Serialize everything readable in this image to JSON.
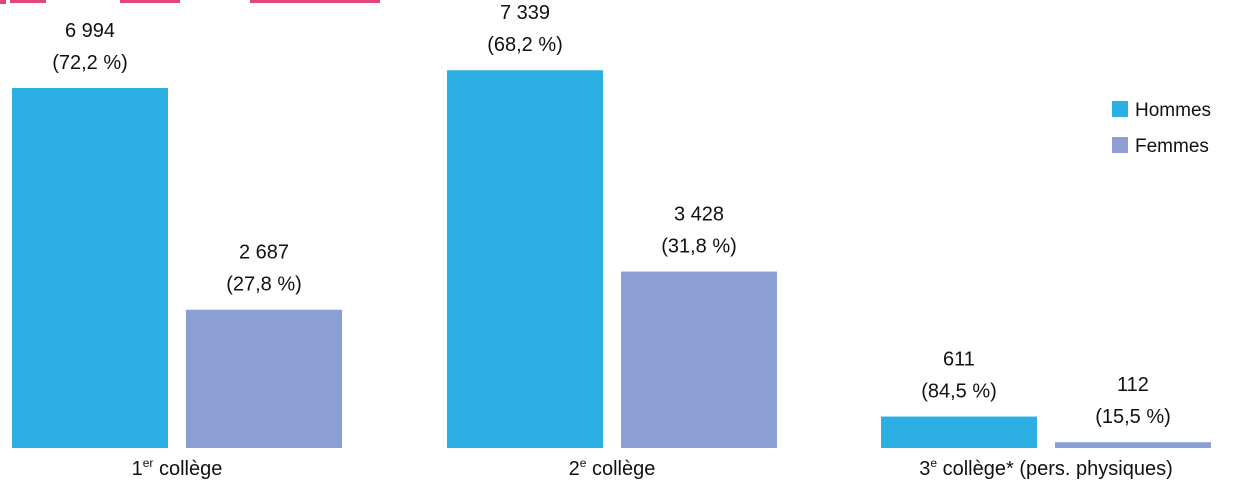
{
  "colors": {
    "hommes": "#2cb0e4",
    "femmes": "#8c9fd4",
    "title": "#e0467a",
    "text": "#111111"
  },
  "legend": {
    "position": "top-right",
    "items": [
      {
        "key": "hommes",
        "label": "Hommes"
      },
      {
        "key": "femmes",
        "label": "Femmes"
      }
    ]
  },
  "chart_data": {
    "type": "bar",
    "grid": false,
    "ylim": [
      0,
      8000
    ],
    "categories": [
      {
        "base": "1",
        "sup": "er",
        "rest": " collège"
      },
      {
        "base": "2",
        "sup": "e",
        "rest": " collège"
      },
      {
        "base": "3",
        "sup": "e",
        "rest": " collège* (pers. physiques)"
      }
    ],
    "series": [
      {
        "name": "Hommes",
        "values": [
          6994,
          7339,
          611
        ],
        "value_labels": [
          "6 994",
          "7 339",
          "611"
        ],
        "pct_labels": [
          "(72,2 %)",
          "(68,2 %)",
          "(84,5 %)"
        ]
      },
      {
        "name": "Femmes",
        "values": [
          2687,
          3428,
          112
        ],
        "value_labels": [
          "2 687",
          "3 428",
          "112"
        ],
        "pct_labels": [
          "(27,8 %)",
          "(31,8 %)",
          "(15,5 %)"
        ]
      }
    ]
  }
}
